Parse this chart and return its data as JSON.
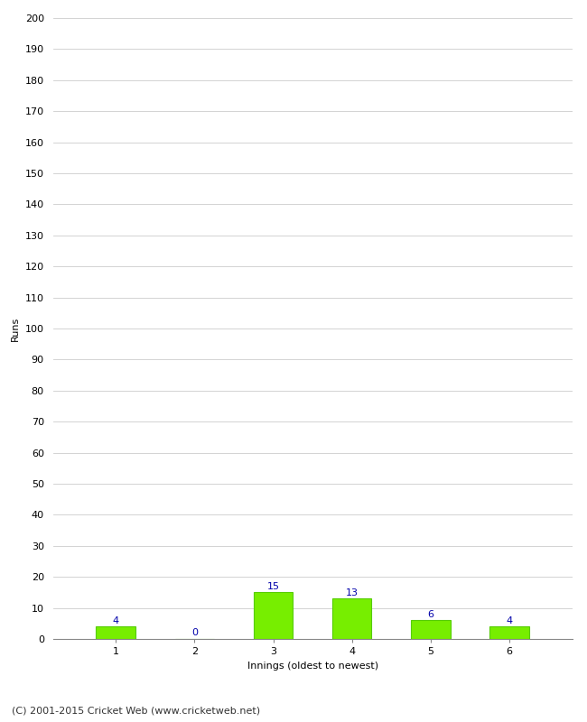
{
  "categories": [
    1,
    2,
    3,
    4,
    5,
    6
  ],
  "values": [
    4,
    0,
    15,
    13,
    6,
    4
  ],
  "bar_color": "#77ee00",
  "bar_edge_color": "#55cc00",
  "label_color": "#0000aa",
  "ylabel": "Runs",
  "xlabel": "Innings (oldest to newest)",
  "ylim": [
    0,
    200
  ],
  "yticks": [
    0,
    10,
    20,
    30,
    40,
    50,
    60,
    70,
    80,
    90,
    100,
    110,
    120,
    130,
    140,
    150,
    160,
    170,
    180,
    190,
    200
  ],
  "footer": "(C) 2001-2015 Cricket Web (www.cricketweb.net)",
  "background_color": "#ffffff",
  "grid_color": "#cccccc",
  "label_fontsize": 8,
  "axis_tick_fontsize": 8,
  "axis_label_fontsize": 8,
  "footer_fontsize": 8
}
